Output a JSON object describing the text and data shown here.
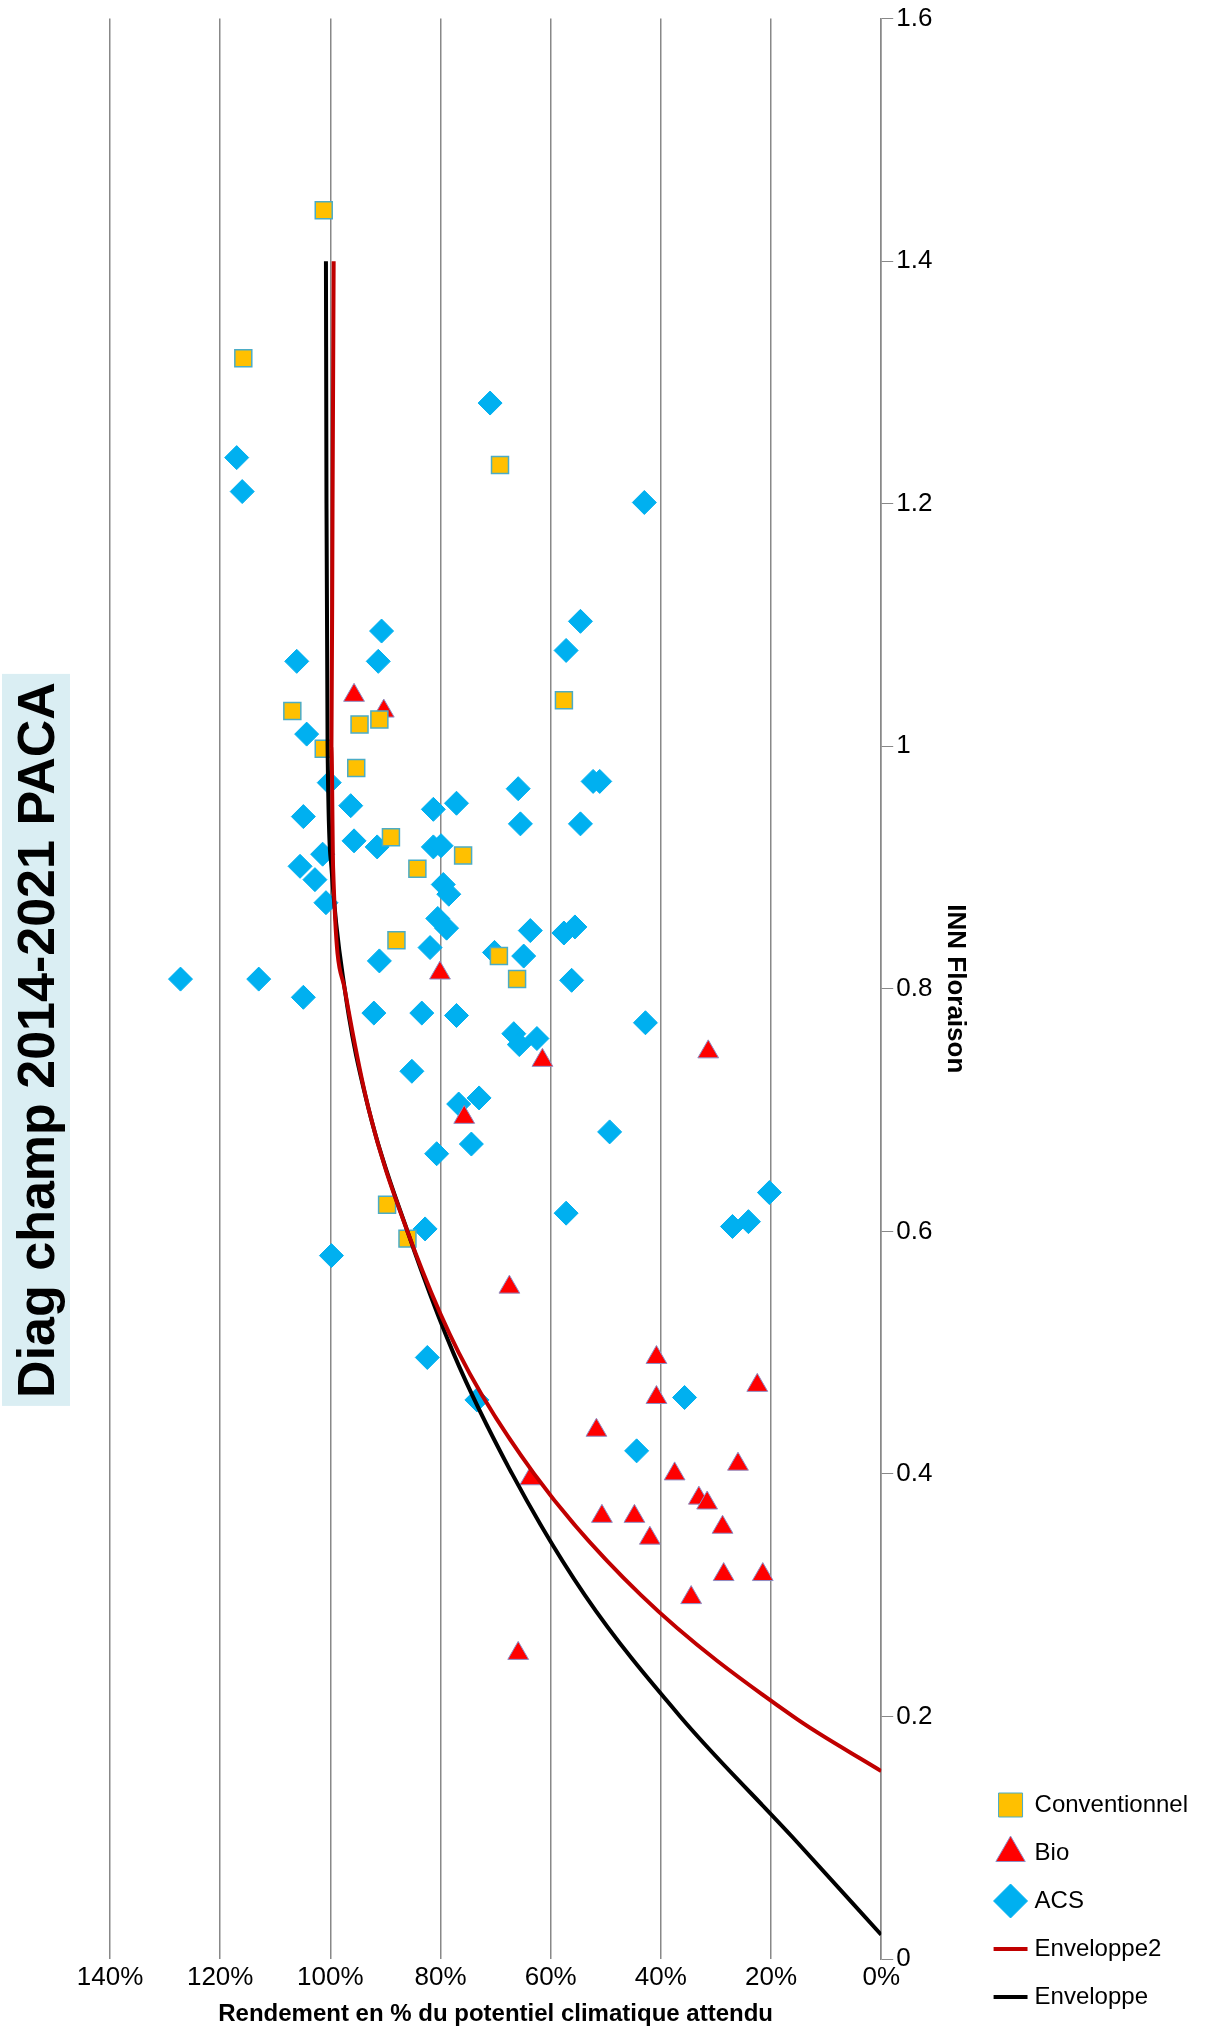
{
  "chart_data": {
    "type": "scatter",
    "title": "Diag champ 2014-2021 PACA",
    "xlabel": "Rendement en % du potentiel climatique attendu",
    "ylabel": "INN Floraison",
    "xlim": [
      140,
      0
    ],
    "xticks": [
      {
        "value": 140,
        "label": "140%"
      },
      {
        "value": 120,
        "label": "120%"
      },
      {
        "value": 100,
        "label": "100%"
      },
      {
        "value": 80,
        "label": "80%"
      },
      {
        "value": 60,
        "label": "60%"
      },
      {
        "value": 40,
        "label": "40%"
      },
      {
        "value": 20,
        "label": "20%"
      },
      {
        "value": 0,
        "label": "0%"
      }
    ],
    "ylim": [
      0,
      1.6
    ],
    "yticks": [
      0,
      0.2,
      0.4,
      0.6,
      0.8,
      1,
      1.2,
      1.4,
      1.6
    ],
    "grid": "x",
    "legend": "right",
    "series": [
      {
        "name": "Enveloppe",
        "type": "line",
        "color": "#000000",
        "marker": "none",
        "x": [
          0,
          16,
          36.5,
          53.8,
          67,
          77.7,
          86,
          93,
          97.4,
          99.8,
          100.5,
          100.7,
          100.8
        ],
        "values": [
          0.02,
          0.1,
          0.2,
          0.3,
          0.4,
          0.5,
          0.6,
          0.7,
          0.8,
          0.9,
          1.0,
          1.2,
          1.4
        ]
      },
      {
        "name": "Enveloppe2",
        "type": "line",
        "color": "#c00000",
        "marker": "none",
        "x": [
          0,
          16,
          43.6,
          63,
          76.7,
          86,
          93,
          97.4,
          99.5,
          99.8,
          99.6,
          99.4
        ],
        "values": [
          0.155,
          0.2,
          0.3,
          0.4,
          0.5,
          0.6,
          0.7,
          0.8,
          0.9,
          1.0,
          1.2,
          1.4
        ]
      },
      {
        "name": "ACS",
        "color": "#00b0f0",
        "marker": "diamond",
        "x": [
          127.2,
          117,
          116,
          71,
          43,
          106.1,
          90.7,
          91.3,
          54.6,
          57.2,
          104.3,
          100.2,
          104.9,
          96.3,
          101.4,
          105.5,
          102.8,
          100.8,
          95.7,
          91.5,
          81.3,
          81.3,
          79.9,
          77.1,
          79.5,
          78.5,
          80.5,
          78.9,
          81.9,
          91.1,
          92.1,
          113,
          104.9,
          83.4,
          77.1,
          85.2,
          76.7,
          73,
          74.4,
          80.7,
          70.2,
          64.9,
          63.7,
          66.7,
          65.7,
          62.5,
          65.9,
          65.5,
          57.6,
          55.6,
          56.2,
          54.6,
          52.3,
          51.1,
          42.8,
          49.3,
          57.2,
          27,
          24.1,
          20.3,
          99.8,
          82.8,
          82.4,
          73.4,
          35.7,
          44.4
        ],
        "values": [
          0.808,
          1.238,
          1.21,
          1.283,
          1.201,
          1.07,
          1.095,
          1.07,
          1.103,
          1.079,
          1.01,
          0.97,
          0.942,
          0.951,
          0.911,
          0.901,
          0.89,
          0.871,
          0.922,
          0.917,
          0.948,
          0.917,
          0.918,
          0.953,
          0.886,
          0.878,
          0.858,
          0.85,
          0.834,
          0.823,
          0.78,
          0.808,
          0.793,
          0.78,
          0.778,
          0.732,
          0.705,
          0.71,
          0.672,
          0.664,
          0.83,
          0.827,
          0.848,
          0.763,
          0.754,
          0.759,
          0.965,
          0.936,
          0.846,
          0.851,
          0.807,
          0.936,
          0.971,
          0.971,
          0.772,
          0.682,
          0.615,
          0.604,
          0.608,
          0.632,
          0.58,
          0.602,
          0.496,
          0.461,
          0.463,
          0.419
        ]
      },
      {
        "name": "Bio",
        "color": "#ff0000",
        "marker": "triangle",
        "x": [
          95.7,
          90.3,
          80.1,
          75.7,
          61.5,
          31.4,
          67.5,
          63.7,
          65.9,
          40.8,
          40.8,
          51.7,
          50.7,
          44.8,
          42,
          37.5,
          33.1,
          31.6,
          28.8,
          26,
          28.6,
          34.5,
          22.5,
          21.5
        ],
        "values": [
          1.042,
          1.029,
          0.813,
          0.694,
          0.741,
          0.748,
          0.554,
          0.396,
          0.252,
          0.496,
          0.463,
          0.436,
          0.365,
          0.365,
          0.347,
          0.4,
          0.38,
          0.376,
          0.356,
          0.408,
          0.317,
          0.298,
          0.473,
          0.317
        ]
      },
      {
        "name": "Conventionnel",
        "color": "#ffc000",
        "marker": "square",
        "x": [
          101.2,
          115.8,
          69.2,
          106.9,
          101.2,
          94.7,
          91.1,
          95.3,
          57.6,
          89,
          75.9,
          84.2,
          88,
          66.1,
          69.4,
          89.7,
          86
        ],
        "values": [
          1.442,
          1.32,
          1.232,
          1.029,
          0.998,
          1.018,
          1.022,
          0.982,
          1.038,
          0.925,
          0.91,
          0.899,
          0.84,
          0.808,
          0.827,
          0.622,
          0.594
        ]
      }
    ]
  }
}
